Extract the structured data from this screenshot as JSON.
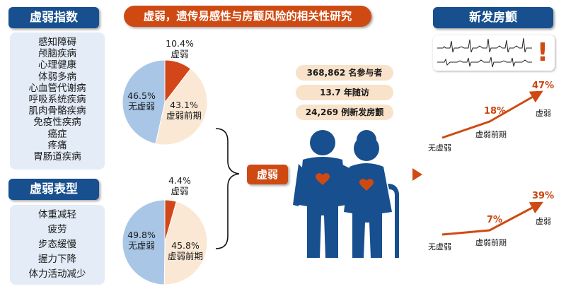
{
  "frailty_index": {
    "header": "虚弱指数",
    "items": [
      "感知障碍",
      "颅脑疾病",
      "心理健康",
      "体弱多病",
      "心血管代谢病",
      "呼吸系统疾病",
      "肌肉骨骼疾病",
      "免疫性疾病",
      "癌症",
      "疼痛",
      "胃肠道疾病"
    ]
  },
  "frailty_phenotype": {
    "header": "虚弱表型",
    "items": [
      "体重减轻",
      "疲劳",
      "步态缓慢",
      "握力下降",
      "体力活动减少"
    ]
  },
  "title": "虚弱，遗传易感性与房颤风险的相关性研究",
  "pie_top": {
    "frail": "10.4%",
    "frail_label": "虚弱",
    "prefrail": "43.1%",
    "prefrail_label": "虚弱前期",
    "nonfrail": "46.5%",
    "nonfrail_label": "无虚弱",
    "values": {
      "frail": 10.4,
      "prefrail": 43.1,
      "nonfrail": 46.5
    }
  },
  "pie_bottom": {
    "frail": "4.4%",
    "frail_label": "虚弱",
    "prefrail": "45.8%",
    "prefrail_label": "虚弱前期",
    "nonfrail": "49.8%",
    "nonfrail_label": "无虚弱",
    "values": {
      "frail": 4.4,
      "prefrail": 45.8,
      "nonfrail": 49.8
    }
  },
  "frailty_tag": "虚弱",
  "stats": [
    "368,862 名参与者",
    "13.7 年随访",
    "24,269 例新发房颤"
  ],
  "new_af": {
    "header": "新发房颤",
    "alert": "!"
  },
  "trend_top": {
    "p1": "18%",
    "p2": "47%",
    "l0": "无虚弱",
    "l1": "虚弱前期",
    "l2": "虚弱"
  },
  "trend_bottom": {
    "p1": "7%",
    "p2": "39%",
    "l0": "无虚弱",
    "l1": "虚弱前期",
    "l2": "虚弱"
  },
  "colors": {
    "navy": "#174f8f",
    "orange": "#cf4a12",
    "panel": "#e3ecf7",
    "pie_frail": "#d2461a",
    "pie_prefrail": "#fbe8d4",
    "pie_nonfrail": "#a9c6e6"
  }
}
